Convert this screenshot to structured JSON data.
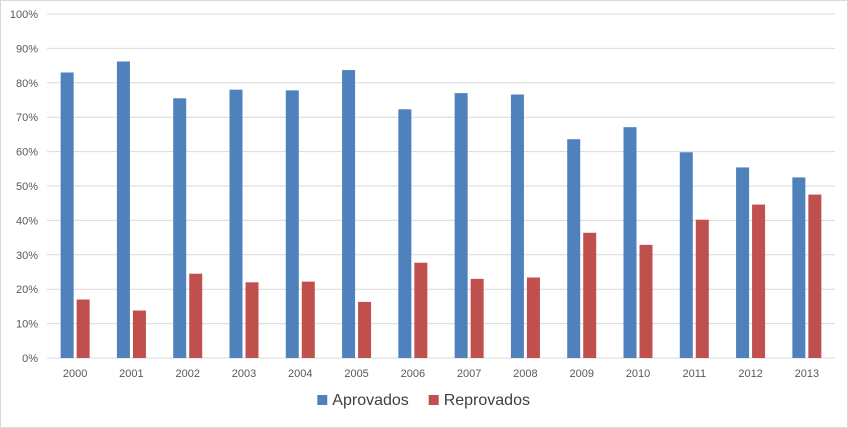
{
  "chart_data": {
    "type": "bar",
    "categories": [
      "2000",
      "2001",
      "2002",
      "2003",
      "2004",
      "2005",
      "2006",
      "2007",
      "2008",
      "2009",
      "2010",
      "2011",
      "2012",
      "2013"
    ],
    "series": [
      {
        "name": "Aprovados",
        "color": "#4f81bd",
        "values": [
          83,
          86.2,
          75.5,
          78,
          77.8,
          83.7,
          72.3,
          77,
          76.6,
          63.6,
          67.1,
          59.8,
          55.4,
          52.5
        ]
      },
      {
        "name": "Reprovados",
        "color": "#c0504d",
        "values": [
          17,
          13.8,
          24.5,
          22,
          22.2,
          16.3,
          27.7,
          23,
          23.4,
          36.4,
          32.9,
          40.2,
          44.6,
          47.5
        ]
      }
    ],
    "y_ticks": [
      "0%",
      "10%",
      "20%",
      "30%",
      "40%",
      "50%",
      "60%",
      "70%",
      "80%",
      "90%",
      "100%"
    ],
    "ylim": [
      0,
      100
    ],
    "grid": true,
    "legend_position": "bottom"
  }
}
